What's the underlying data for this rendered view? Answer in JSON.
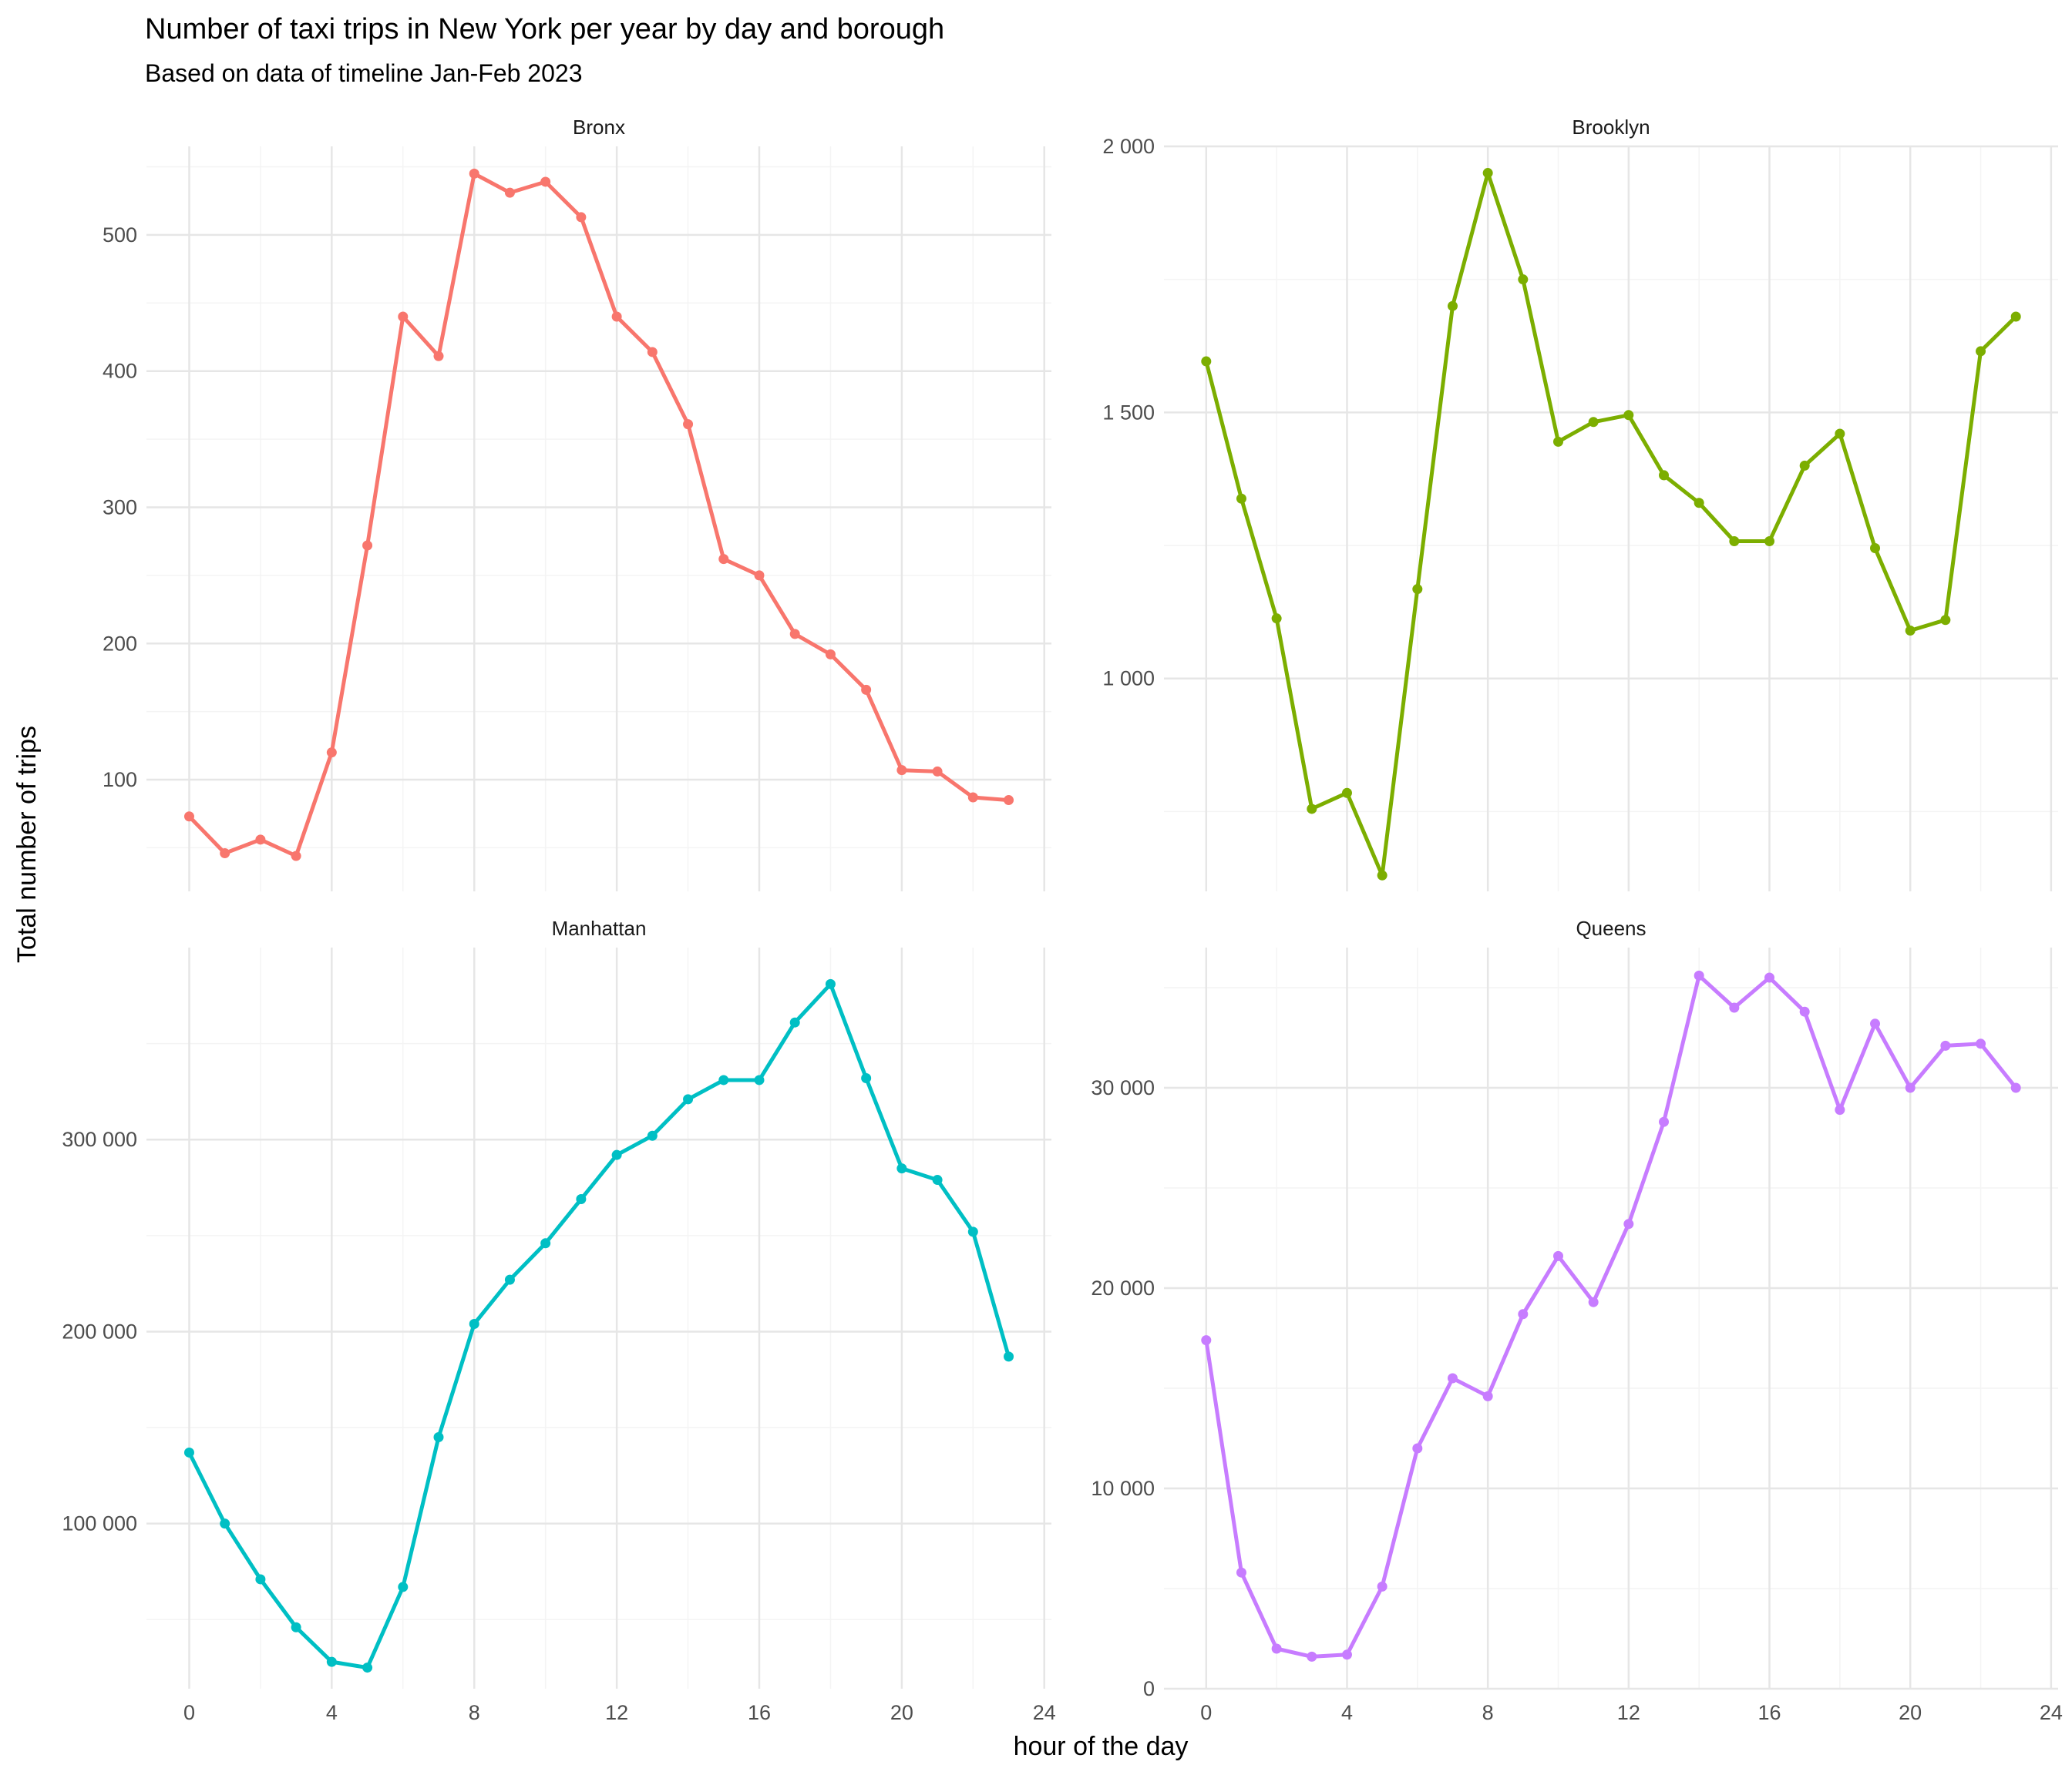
{
  "chart_data": {
    "type": "line",
    "title": "Number of taxi trips in New York per year by day and borough",
    "subtitle": "Based on data of timeline Jan-Feb 2023",
    "xlabel": "hour of the day",
    "ylabel": "Total number of trips",
    "x": [
      0,
      1,
      2,
      3,
      4,
      5,
      6,
      7,
      8,
      9,
      10,
      11,
      12,
      13,
      14,
      15,
      16,
      17,
      18,
      19,
      20,
      21,
      22,
      23
    ],
    "xlim": [
      -1.2,
      24.2
    ],
    "x_ticks": [
      0,
      4,
      8,
      12,
      16,
      20,
      24
    ],
    "x_tick_labels": [
      "0",
      "4",
      "8",
      "12",
      "16",
      "20",
      "24"
    ],
    "grid": true,
    "legend": "none",
    "panels": [
      {
        "name": "Bronx",
        "color": "#F8766D",
        "ylim": [
          18,
          565
        ],
        "y_ticks": [
          100,
          200,
          300,
          400,
          500
        ],
        "y_tick_labels": [
          "100",
          "200",
          "300",
          "400",
          "500"
        ],
        "y_minor": [
          50,
          150,
          250,
          350,
          450,
          550
        ],
        "values": [
          73,
          46,
          56,
          44,
          120,
          272,
          440,
          411,
          545,
          531,
          539,
          513,
          440,
          414,
          361,
          262,
          250,
          207,
          192,
          166,
          107,
          106,
          87,
          85
        ]
      },
      {
        "name": "Brooklyn",
        "color": "#7CAE00",
        "ylim": [
          600,
          2000
        ],
        "y_ticks": [
          1000,
          1500,
          2000
        ],
        "y_tick_labels": [
          "1 000",
          "1 500",
          "2 000"
        ],
        "y_minor": [
          750,
          1250,
          1750
        ],
        "values": [
          1596,
          1338,
          1113,
          755,
          785,
          630,
          1168,
          1700,
          1950,
          1750,
          1445,
          1482,
          1495,
          1382,
          1330,
          1258,
          1258,
          1400,
          1460,
          1245,
          1090,
          1110,
          1615,
          1680
        ]
      },
      {
        "name": "Manhattan",
        "color": "#00BFC4",
        "ylim": [
          14000,
          400000
        ],
        "y_ticks": [
          100000,
          200000,
          300000
        ],
        "y_tick_labels": [
          "100 000",
          "200 000",
          "300 000"
        ],
        "y_minor": [
          50000,
          150000,
          250000,
          350000
        ],
        "values": [
          137000,
          100000,
          71000,
          46000,
          28000,
          25000,
          67000,
          145000,
          204000,
          227000,
          246000,
          269000,
          292000,
          302000,
          321000,
          331000,
          331000,
          361000,
          381000,
          332000,
          285000,
          279000,
          252000,
          187000
        ]
      },
      {
        "name": "Queens",
        "color": "#C77CFF",
        "ylim": [
          0,
          37000
        ],
        "y_ticks": [
          0,
          10000,
          20000,
          30000
        ],
        "y_tick_labels": [
          "0",
          "10 000",
          "20 000",
          "30 000"
        ],
        "y_minor": [
          5000,
          15000,
          25000,
          35000
        ],
        "values": [
          17400,
          5800,
          2000,
          1600,
          1700,
          5100,
          12000,
          15500,
          14600,
          18700,
          21600,
          19300,
          23200,
          28300,
          35600,
          34000,
          35500,
          33800,
          28900,
          33200,
          30000,
          32100,
          32200,
          30000
        ]
      }
    ]
  }
}
